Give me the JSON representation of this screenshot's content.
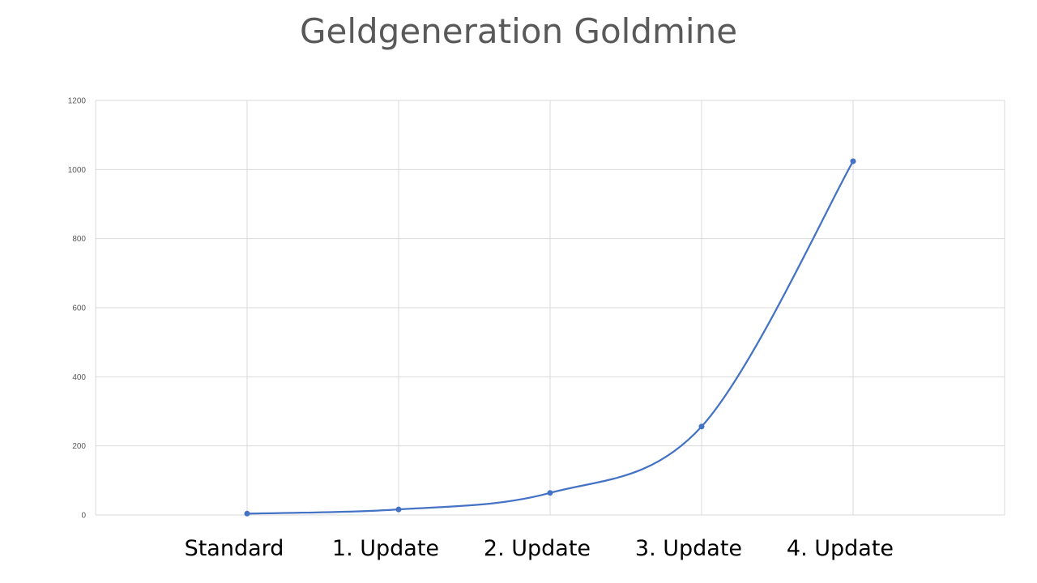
{
  "chart_data": {
    "type": "line",
    "title": "Geldgeneration Goldmine",
    "categories": [
      "Standard",
      "1. Update",
      "2. Update",
      "3. Update",
      "4. Update"
    ],
    "series": [
      {
        "values": [
          4,
          16,
          64,
          256,
          1024
        ],
        "color": "#4472C4"
      }
    ],
    "xlabel": "",
    "ylabel": "",
    "ylim": [
      0,
      1200
    ],
    "yticks": [
      0,
      200,
      400,
      600,
      800,
      1000,
      1200
    ],
    "grid": true,
    "smooth": true,
    "markers": true,
    "colors": {
      "line": "#4472C4",
      "grid": "#D9D9D9",
      "title": "#595959"
    }
  }
}
